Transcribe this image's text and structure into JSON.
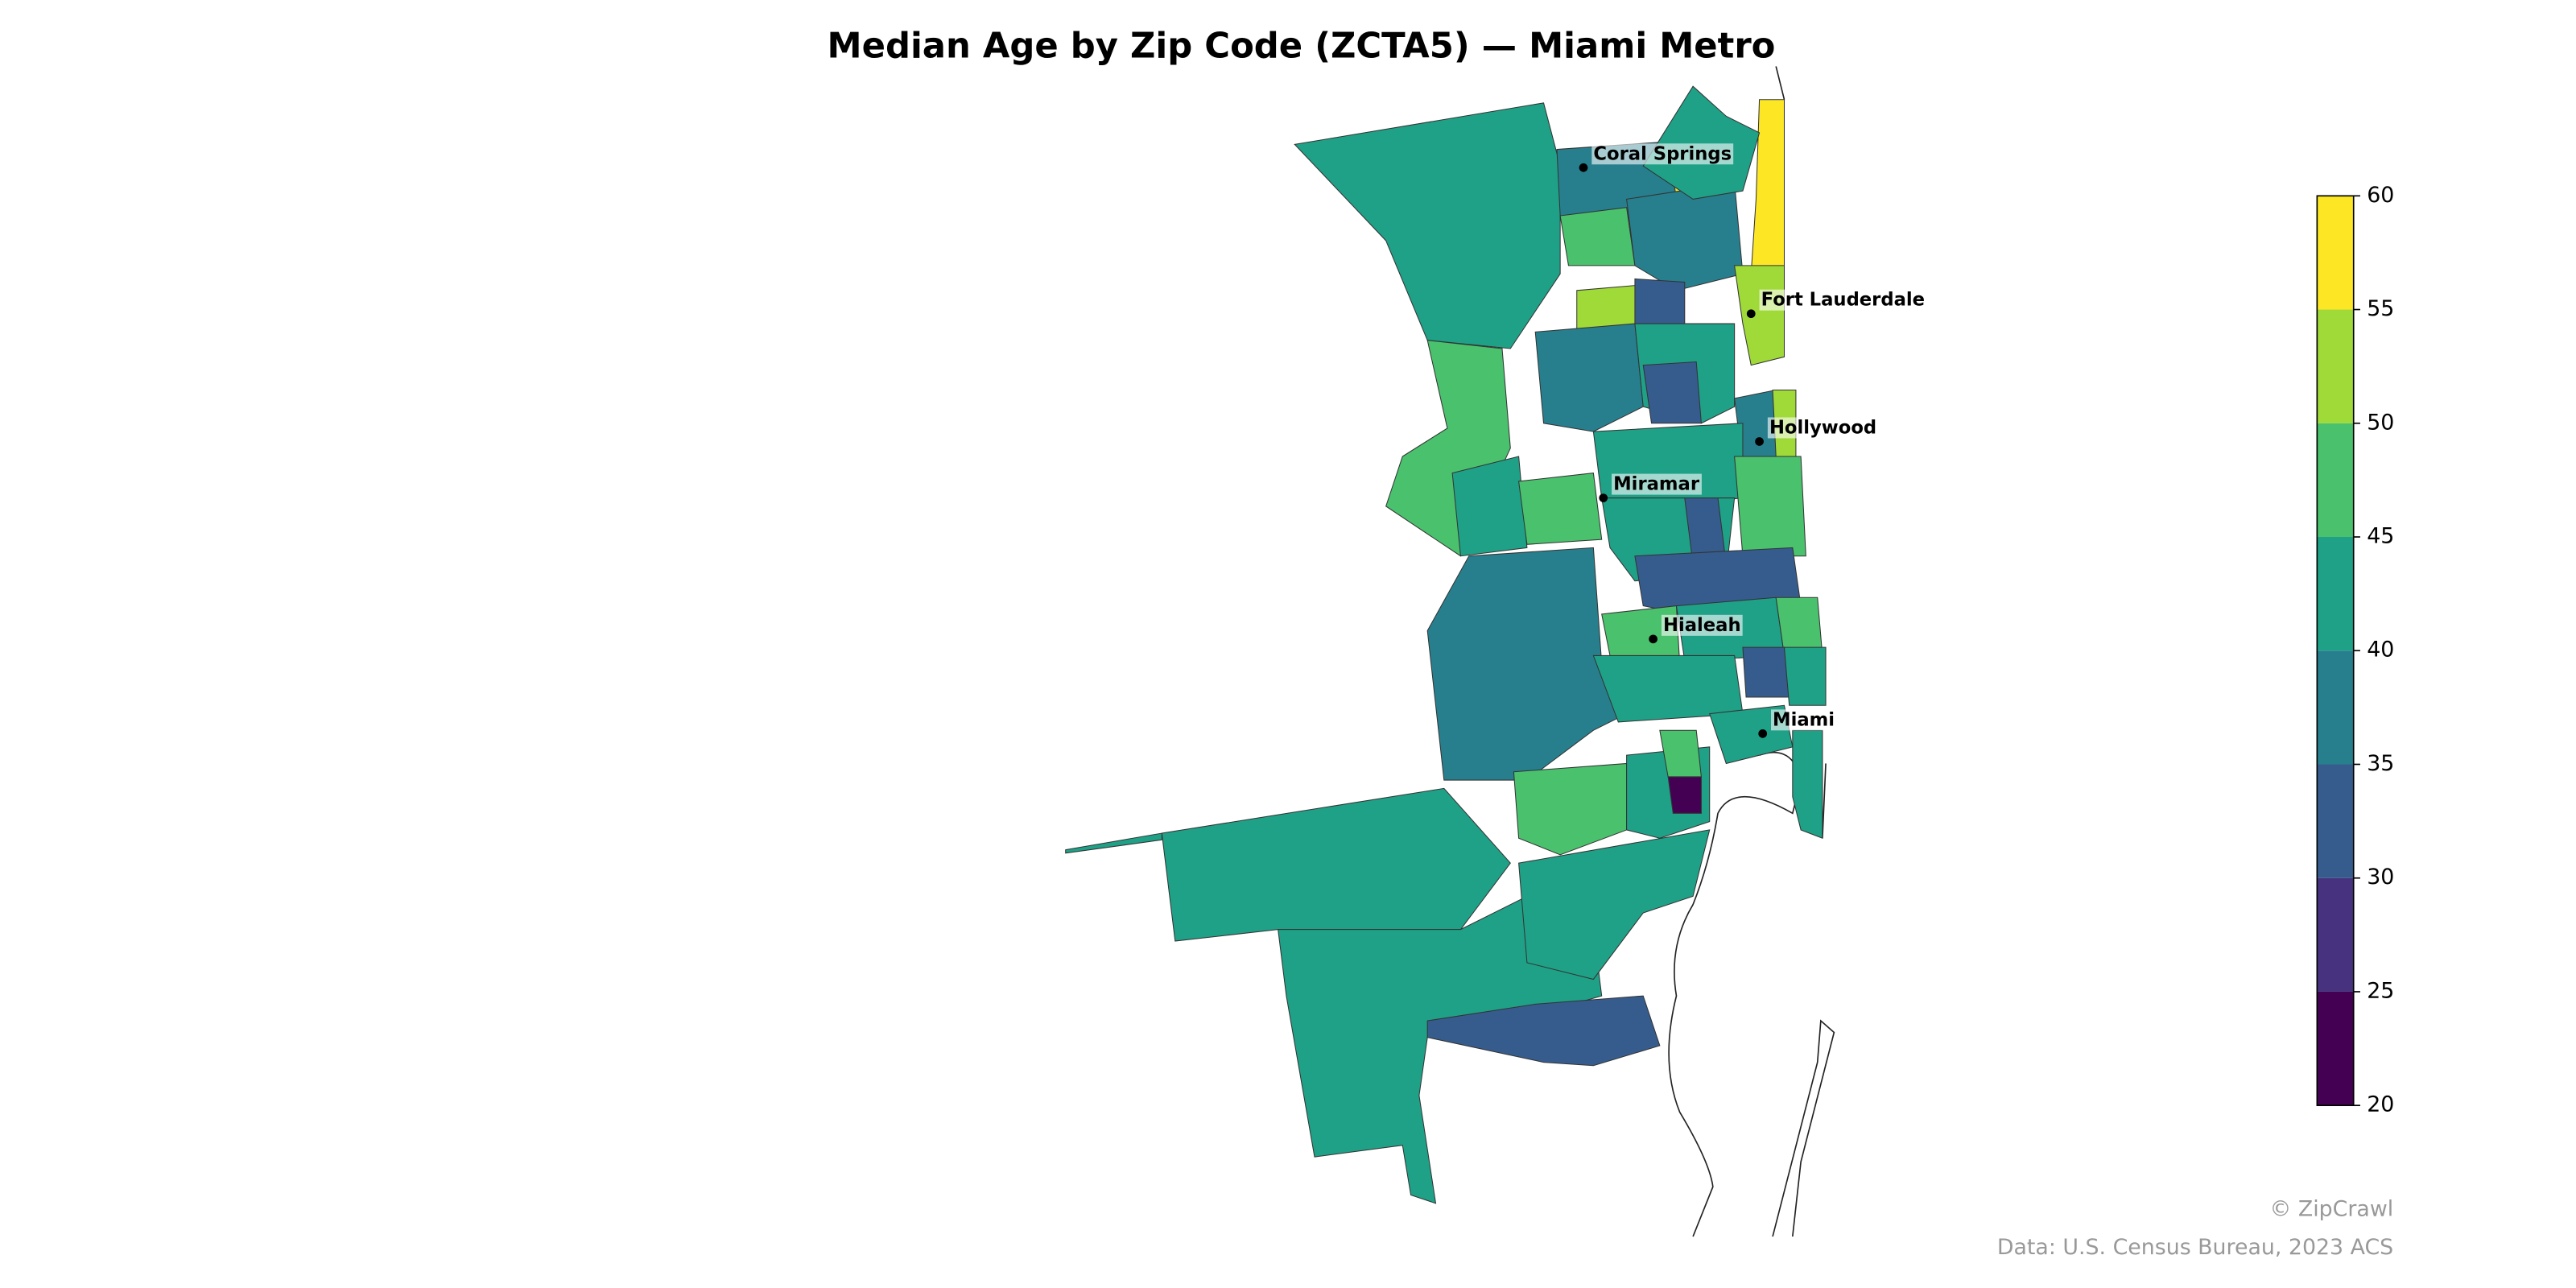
{
  "chart_data": {
    "type": "choropleth",
    "title": "Median Age by Zip Code (ZCTA5) — Miami Metro",
    "cities": [
      "Coral Springs",
      "Fort Lauderdale",
      "Hollywood",
      "Miramar",
      "Hialeah",
      "Miami"
    ],
    "colorbar": {
      "lim": [
        20,
        60
      ],
      "ticks": [
        20,
        25,
        30,
        35,
        40,
        45,
        50,
        55,
        60
      ],
      "colors": [
        "#440154",
        "#46327e",
        "#365c8d",
        "#277f8e",
        "#1fa187",
        "#4ac16d",
        "#a0da39",
        "#fde725"
      ]
    },
    "regions": [
      42,
      47,
      42,
      37,
      42,
      42,
      42,
      33,
      47,
      42,
      22,
      42,
      37,
      57,
      58,
      47,
      37,
      52,
      33,
      42,
      52,
      37,
      42,
      33,
      37,
      52,
      47,
      42,
      47,
      42,
      33,
      33,
      47,
      42,
      47,
      42,
      33,
      42,
      42,
      42,
      47
    ],
    "credit": "© ZipCrawl",
    "source": "Data: U.S. Census Bureau, 2023 ACS"
  }
}
